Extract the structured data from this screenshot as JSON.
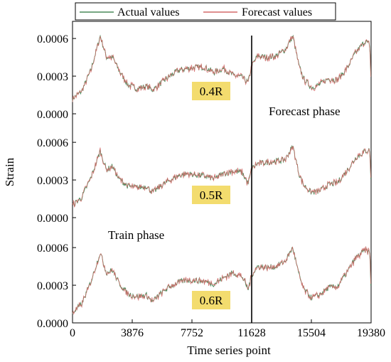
{
  "chart_data": {
    "type": "line",
    "xlabel": "Time series point",
    "ylabel": "Strain",
    "xlim": [
      0,
      19380
    ],
    "x_ticks": [
      "0",
      "3876",
      "7752",
      "11628",
      "15504",
      "19380"
    ],
    "ylim": [
      0,
      0.00068
    ],
    "y_ticks": [
      "0.0000",
      "0.0003",
      "0.0006"
    ],
    "split_x": 11628,
    "phase_labels": {
      "train": "Train phase",
      "forecast": "Forecast phase"
    },
    "legend": {
      "position": "top",
      "entries": [
        "Actual values",
        "Forecast values"
      ]
    },
    "series_colors": {
      "actual": "#4a8a5a",
      "forecast": "#d46a6a"
    },
    "badge_color": "#f3dc6e",
    "panels": [
      {
        "label": "0.4R",
        "x": [
          0,
          600,
          1200,
          1800,
          2200,
          2600,
          3000,
          3600,
          4200,
          4800,
          5200,
          5600,
          6200,
          6800,
          7400,
          8000,
          8600,
          9200,
          9800,
          10400,
          11000,
          11400,
          11628,
          12000,
          12600,
          13200,
          13800,
          14300,
          14700,
          15000,
          15504,
          16000,
          16600,
          17200,
          17800,
          18400,
          19000,
          19300,
          19380
        ],
        "values": [
          0.00012,
          0.00018,
          0.00035,
          0.00062,
          0.00045,
          0.00045,
          0.00035,
          0.00023,
          0.0002,
          0.00022,
          0.00019,
          0.00023,
          0.00029,
          0.00034,
          0.00036,
          0.00037,
          0.00037,
          0.00033,
          0.00036,
          0.00031,
          0.00029,
          0.00025,
          0.00038,
          0.00046,
          0.00045,
          0.00046,
          0.00051,
          0.00062,
          0.00038,
          0.00028,
          0.00021,
          0.00023,
          0.00028,
          0.00027,
          0.00036,
          0.00049,
          0.00058,
          0.00055,
          0.00022
        ]
      },
      {
        "label": "0.5R",
        "x": [
          0,
          600,
          1200,
          1800,
          2200,
          2600,
          3000,
          3600,
          4200,
          4800,
          5200,
          5600,
          6200,
          6800,
          7400,
          8000,
          8600,
          9200,
          9800,
          10400,
          11000,
          11400,
          11628,
          12000,
          12600,
          13200,
          13800,
          14300,
          14700,
          15000,
          15504,
          16000,
          16600,
          17200,
          17800,
          18400,
          19000,
          19300,
          19380
        ],
        "values": [
          0.0001,
          0.00016,
          0.00032,
          0.00053,
          0.00038,
          0.00041,
          0.00031,
          0.00025,
          0.00024,
          0.00025,
          0.0002,
          0.00024,
          0.00029,
          0.00033,
          0.00035,
          0.00034,
          0.00033,
          0.00031,
          0.00035,
          0.00037,
          0.00036,
          0.00027,
          0.00039,
          0.00043,
          0.00044,
          0.00045,
          0.00046,
          0.00057,
          0.00035,
          0.00026,
          0.0002,
          0.00021,
          0.00026,
          0.00028,
          0.00037,
          0.00048,
          0.00053,
          0.00054,
          0.00022
        ]
      },
      {
        "label": "0.6R",
        "x": [
          0,
          600,
          1200,
          1800,
          2200,
          2600,
          3000,
          3600,
          4200,
          4800,
          5200,
          5600,
          6200,
          6800,
          7400,
          8000,
          8600,
          9200,
          9800,
          10400,
          11000,
          11400,
          11628,
          12000,
          12600,
          13200,
          13800,
          14300,
          14700,
          15000,
          15504,
          16000,
          16600,
          17200,
          17800,
          18400,
          19000,
          19300,
          19380
        ],
        "values": [
          8e-05,
          0.00015,
          0.00033,
          0.00056,
          0.0004,
          0.00042,
          0.00032,
          0.00023,
          0.00021,
          0.00022,
          0.00017,
          0.00022,
          0.00028,
          0.00032,
          0.00034,
          0.00034,
          0.00033,
          0.00031,
          0.00036,
          0.0004,
          0.00037,
          0.00027,
          0.00038,
          0.00045,
          0.00044,
          0.00045,
          0.00049,
          0.0006,
          0.00038,
          0.00027,
          0.0002,
          0.00022,
          0.00028,
          0.00029,
          0.0004,
          0.00052,
          0.00058,
          0.00056,
          0.00023
        ]
      }
    ]
  }
}
